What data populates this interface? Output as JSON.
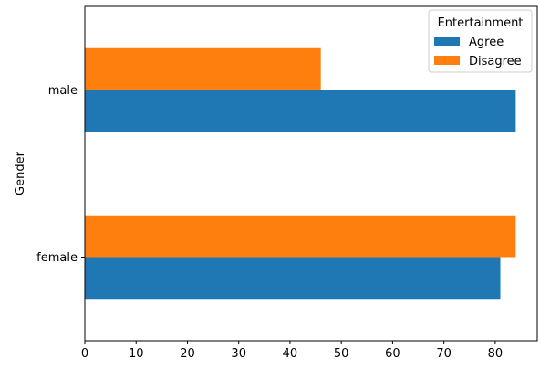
{
  "chart_data": {
    "type": "bar",
    "orientation": "horizontal",
    "title": "",
    "xlabel": "",
    "ylabel": "Gender",
    "categories": [
      "female",
      "male"
    ],
    "series": [
      {
        "name": "Agree",
        "values": [
          81,
          84
        ],
        "color": "#1f77b4"
      },
      {
        "name": "Disagree",
        "values": [
          84,
          46
        ],
        "color": "#ff7f0e"
      }
    ],
    "xlim": [
      0,
      88.2
    ],
    "xticks": [
      0,
      10,
      20,
      30,
      40,
      50,
      60,
      70,
      80
    ],
    "grid": false,
    "legend": {
      "title": "Entertainment",
      "placement": "top-right"
    }
  }
}
